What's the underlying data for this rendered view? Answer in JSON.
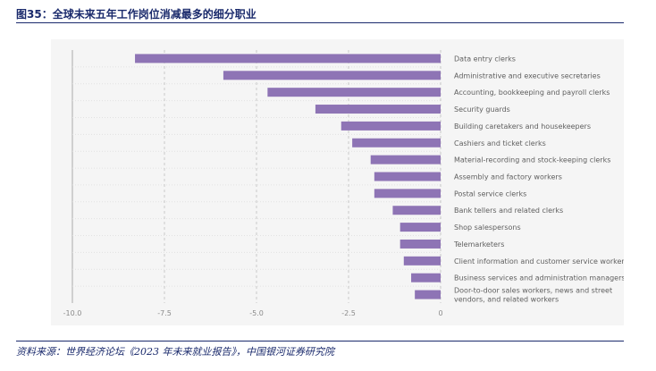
{
  "figure": {
    "title": "图35：全球未来五年工作岗位消减最多的细分职业",
    "source": "资料来源：世界经济论坛《2023 年未来就业报告》，中国银河证券研究院"
  },
  "colors": {
    "bar": "#8e74b5",
    "grid": "#c9c9c9",
    "grid_dot": "#e2e2e2",
    "label": "#5f5f5f",
    "tick": "#8a8a8a",
    "axis": "#aaaaaa",
    "panel": "#f5f5f5",
    "heading": "#1a2a6c"
  },
  "chart_data": {
    "type": "bar",
    "orientation": "horizontal",
    "title": "",
    "xlabel": "",
    "ylabel": "",
    "xlim": [
      -10.0,
      0
    ],
    "x_ticks": [
      -10.0,
      -7.5,
      -5.0,
      -2.5,
      0
    ],
    "x_tick_labels": [
      "-10.0",
      "-7.5",
      "-5.0",
      "-2.5",
      "0"
    ],
    "grid": true,
    "categories": [
      [
        "Data entry clerks"
      ],
      [
        "Administrative and executive secretaries"
      ],
      [
        "Accounting, bookkeeping and payroll clerks"
      ],
      [
        "Security guards"
      ],
      [
        "Building caretakers and housekeepers"
      ],
      [
        "Cashiers and ticket clerks"
      ],
      [
        "Material-recording and stock-keeping clerks"
      ],
      [
        "Assembly and factory workers"
      ],
      [
        "Postal service clerks"
      ],
      [
        "Bank tellers and related clerks"
      ],
      [
        "Shop salespersons"
      ],
      [
        "Telemarketers"
      ],
      [
        "Client information and customer service workers"
      ],
      [
        "Business services and administration managers"
      ],
      [
        "Door-to-door sales workers, news and street",
        "vendors, and related workers"
      ]
    ],
    "values": [
      -8.3,
      -5.9,
      -4.7,
      -3.4,
      -2.7,
      -2.4,
      -1.9,
      -1.8,
      -1.8,
      -1.3,
      -1.1,
      -1.1,
      -1.0,
      -0.8,
      -0.7
    ]
  }
}
